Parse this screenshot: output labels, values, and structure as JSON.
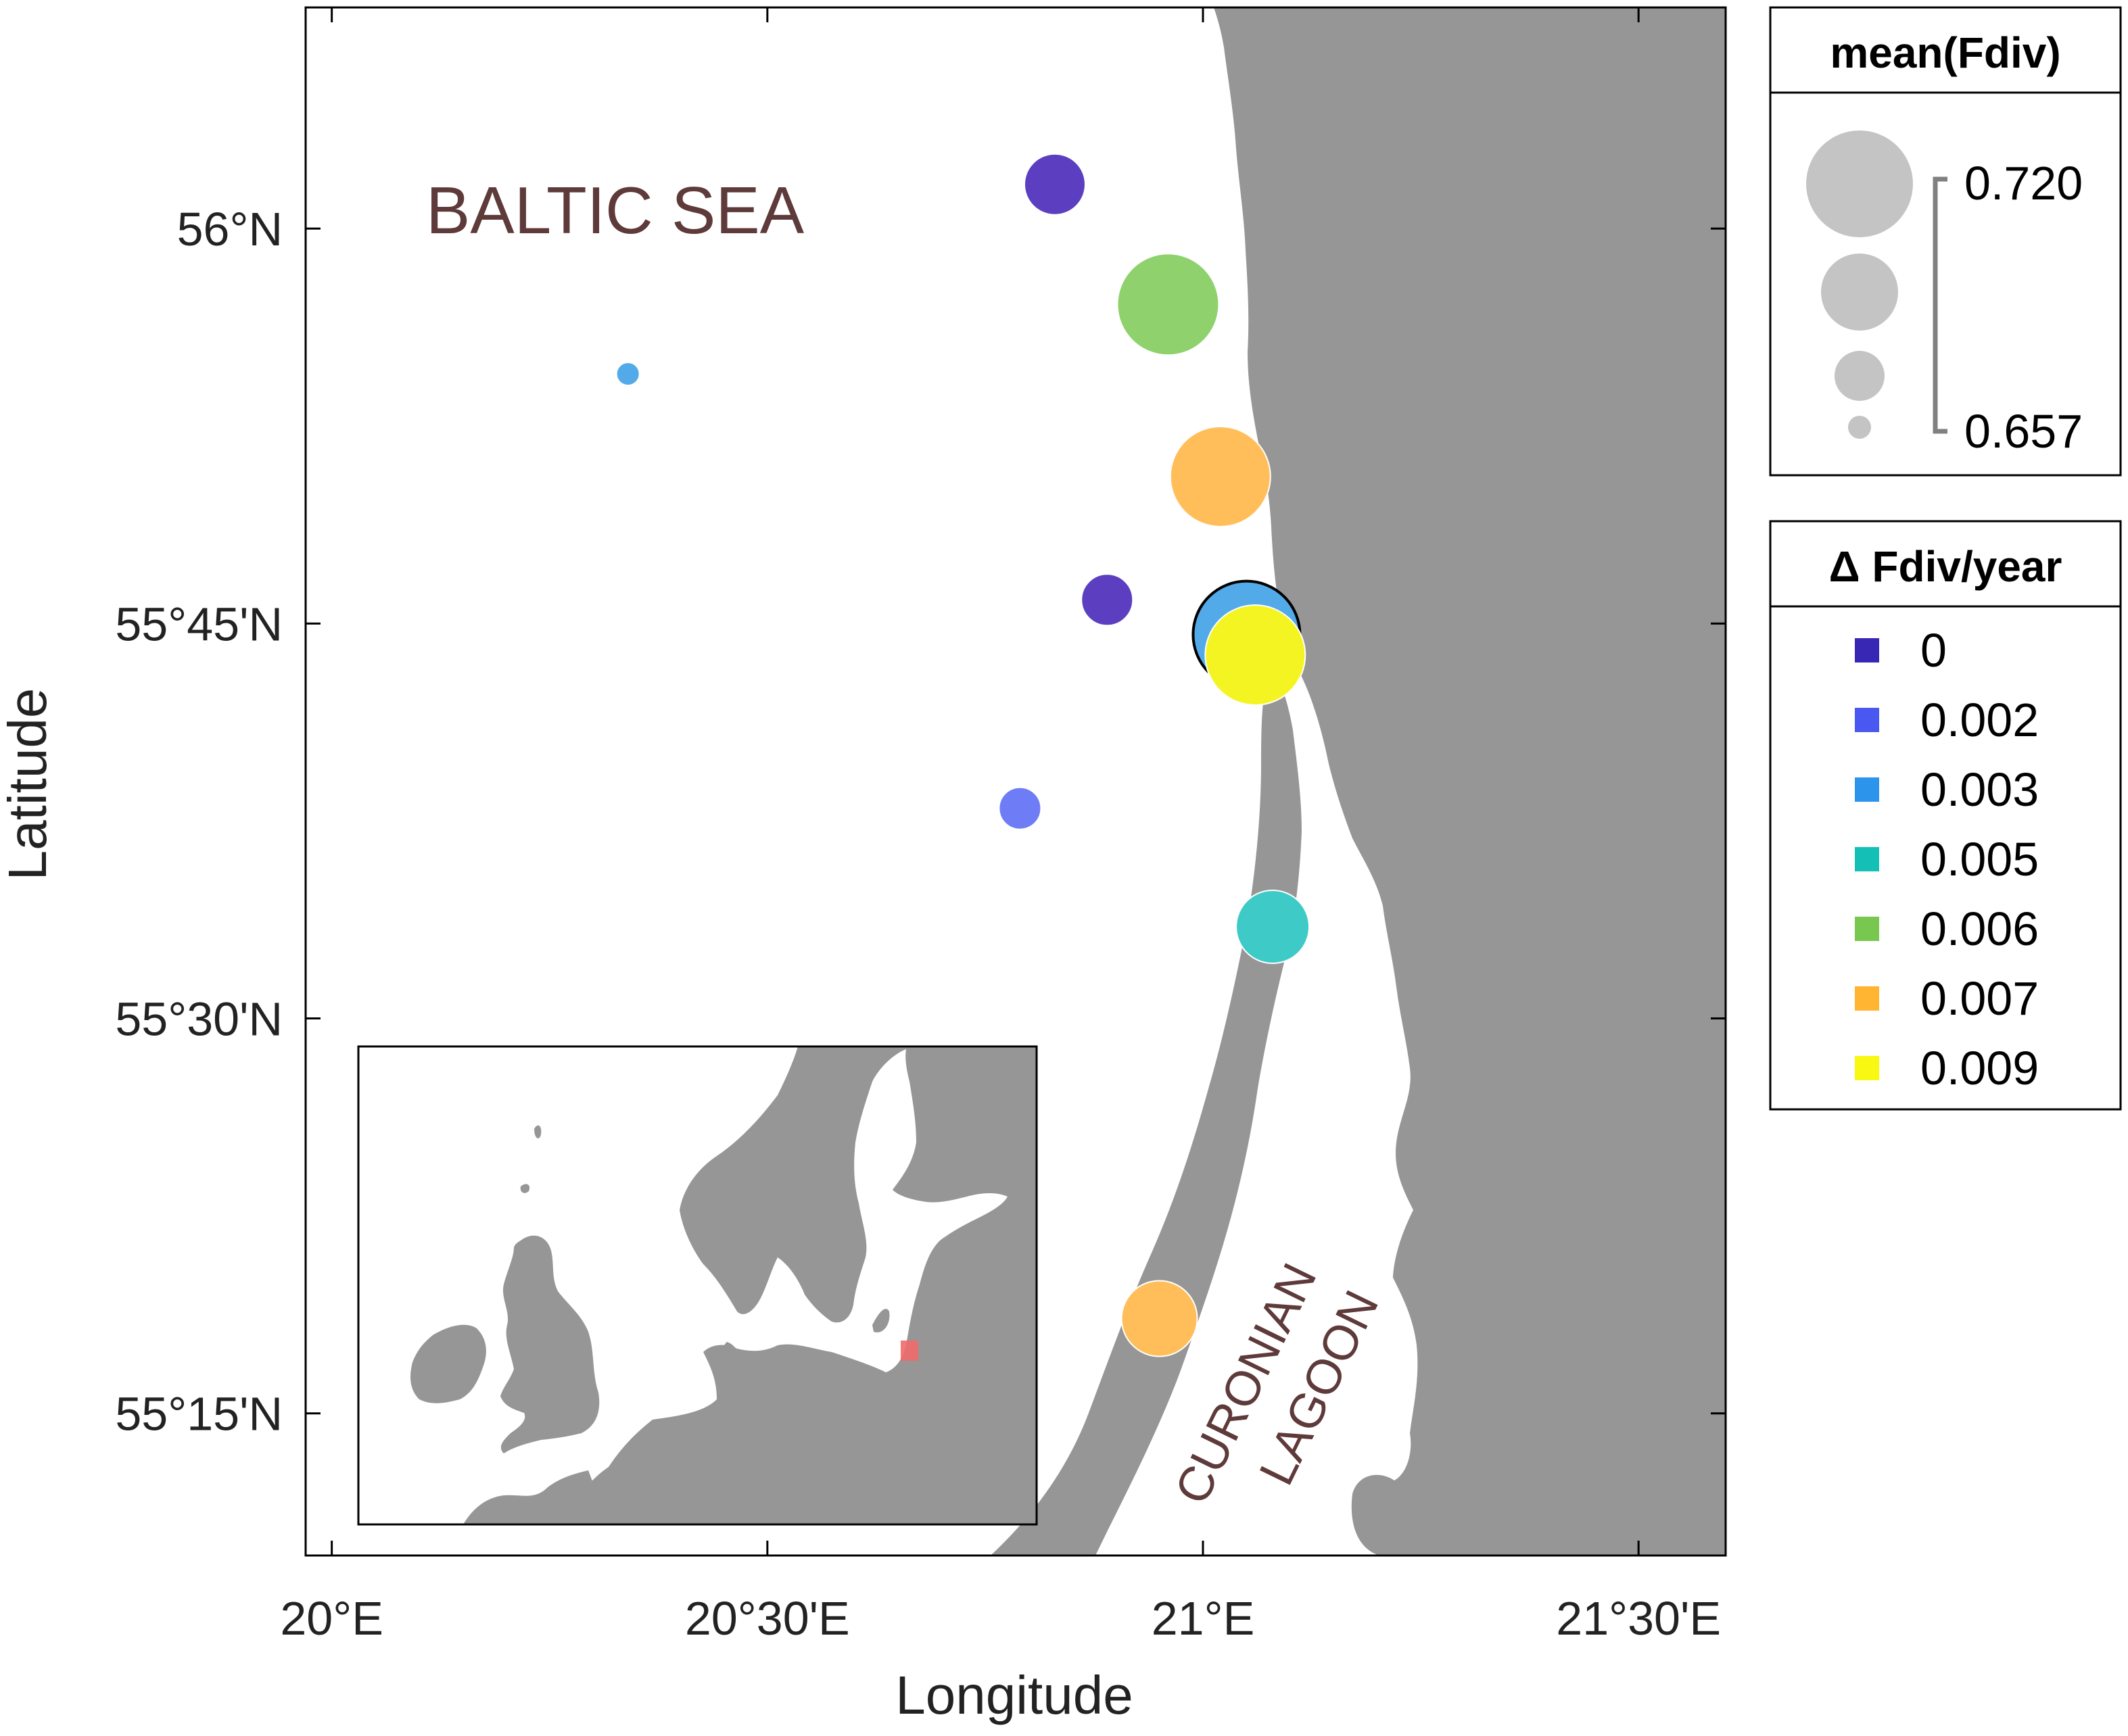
{
  "map": {
    "sea_label": "BALTIC SEA",
    "lagoon_label_1": "CURONIAN",
    "lagoon_label_2": "LAGOON",
    "land_color": "#969696",
    "sea_color": "#ffffff",
    "label_color": "#5e3a3a",
    "inset_marker_color": "#f06a6a"
  },
  "axes": {
    "xlabel": "Longitude",
    "ylabel": "Latitude",
    "x_ticks": [
      {
        "value": 20.0,
        "label": "20°E"
      },
      {
        "value": 20.5,
        "label": "20°30'E"
      },
      {
        "value": 21.0,
        "label": "21°E"
      },
      {
        "value": 21.5,
        "label": "21°30'E"
      }
    ],
    "y_ticks": [
      {
        "value": 56.0,
        "label": "56°N"
      },
      {
        "value": 55.75,
        "label": "55°45'N"
      },
      {
        "value": 55.5,
        "label": "55°30'N"
      },
      {
        "value": 55.25,
        "label": "55°15'N"
      }
    ],
    "xlim": [
      19.97,
      21.6
    ],
    "ylim": [
      55.16,
      56.14
    ]
  },
  "chart_data": {
    "type": "scatter",
    "xlabel": "Longitude",
    "ylabel": "Latitude",
    "size_variable": "mean(Fdiv)",
    "color_variable": "Δ Fdiv/year",
    "size_range": [
      0.657,
      0.72
    ],
    "points": [
      {
        "lon": 20.83,
        "lat": 56.028,
        "mean_fdiv": 0.686,
        "delta": 0,
        "color": "#5b3fc0"
      },
      {
        "lon": 20.96,
        "lat": 55.952,
        "mean_fdiv": 0.716,
        "delta": 0.006,
        "color": "#8fd16d"
      },
      {
        "lon": 20.34,
        "lat": 55.908,
        "mean_fdiv": 0.658,
        "delta": 0.003,
        "color": "#53aae8"
      },
      {
        "lon": 21.02,
        "lat": 55.843,
        "mean_fdiv": 0.715,
        "delta": 0.007,
        "color": "#ffbe5a"
      },
      {
        "lon": 20.89,
        "lat": 55.765,
        "mean_fdiv": 0.679,
        "delta": 0,
        "color": "#5b3fc0"
      },
      {
        "lon": 21.05,
        "lat": 55.743,
        "mean_fdiv": 0.72,
        "delta": 0.003,
        "color": "#53aae8",
        "outlined": true
      },
      {
        "lon": 21.06,
        "lat": 55.73,
        "mean_fdiv": 0.715,
        "delta": 0.009,
        "color": "#f4f423"
      },
      {
        "lon": 20.79,
        "lat": 55.633,
        "mean_fdiv": 0.672,
        "delta": 0.002,
        "color": "#6e7cf5"
      },
      {
        "lon": 21.08,
        "lat": 55.558,
        "mean_fdiv": 0.695,
        "delta": 0.005,
        "color": "#3ecac6"
      },
      {
        "lon": 20.95,
        "lat": 55.31,
        "mean_fdiv": 0.697,
        "delta": 0.007,
        "color": "#ffbe5a"
      }
    ]
  },
  "legend_size": {
    "title": "mean(Fdiv)",
    "max_label": "0.720",
    "min_label": "0.657",
    "circle_color": "#c4c4c4"
  },
  "legend_color": {
    "title": "Δ Fdiv/year",
    "items": [
      {
        "label": "0",
        "color": "#3826b4"
      },
      {
        "label": "0.002",
        "color": "#4a58f2"
      },
      {
        "label": "0.003",
        "color": "#2c94ea"
      },
      {
        "label": "0.005",
        "color": "#14c0b6"
      },
      {
        "label": "0.006",
        "color": "#78c850"
      },
      {
        "label": "0.007",
        "color": "#ffb432"
      },
      {
        "label": "0.009",
        "color": "#f8f812"
      }
    ]
  }
}
